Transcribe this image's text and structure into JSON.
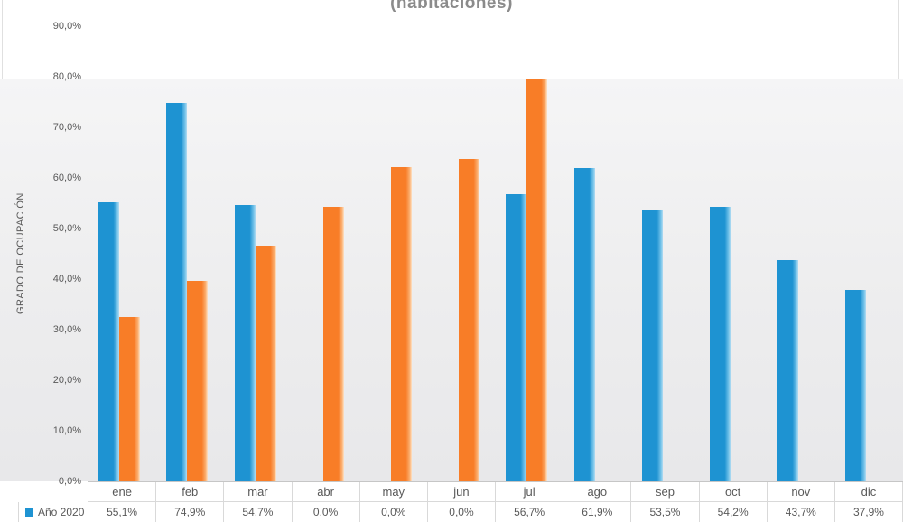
{
  "chart_data": {
    "type": "bar",
    "title": "(habitaciones)",
    "ylabel": "GRADO DE OCUPACIÓN",
    "categories": [
      "ene",
      "feb",
      "mar",
      "abr",
      "may",
      "jun",
      "jul",
      "ago",
      "sep",
      "oct",
      "nov",
      "dic"
    ],
    "series": [
      {
        "id": "ano-2020",
        "name": "Año 2020",
        "color": "#1e93d2",
        "color_edge": "#6fc0e8",
        "color_edge2": "#b3dcf2",
        "values": [
          55.1,
          74.9,
          54.7,
          0,
          0,
          0,
          56.7,
          61.9,
          53.5,
          54.2,
          43.7,
          37.9
        ]
      },
      {
        "id": "serie-2",
        "name": "",
        "color": "#f87d27",
        "color_edge": "#fbaf70",
        "color_edge2": "#fde3c8",
        "values": [
          32.5,
          39.7,
          46.6,
          54.2,
          62.2,
          63.7,
          79.7,
          0,
          0,
          0,
          0,
          0
        ]
      }
    ],
    "y_tick_labels": [
      "0,0%",
      "10,0%",
      "20,0%",
      "30,0%",
      "40,0%",
      "50,0%",
      "60,0%",
      "70,0%",
      "80,0%",
      "90,0%"
    ],
    "ylim": [
      0,
      90
    ],
    "grid": false,
    "legend_position": "data-table-left",
    "data_table": {
      "row_label": "Año 2020",
      "values": [
        "55,1%",
        "74,9%",
        "54,7%",
        "0,0%",
        "0,0%",
        "0,0%",
        "56,7%",
        "61,9%",
        "53,5%",
        "54,2%",
        "43,7%",
        "37,9%"
      ]
    }
  },
  "colors": {
    "text": "#595959",
    "title": "#8b8b8b",
    "border": "#d9d9d9",
    "axis_line": "#c6c6c6",
    "panel_top": "#f5f5f6",
    "panel_bottom": "#e8e8ea"
  }
}
